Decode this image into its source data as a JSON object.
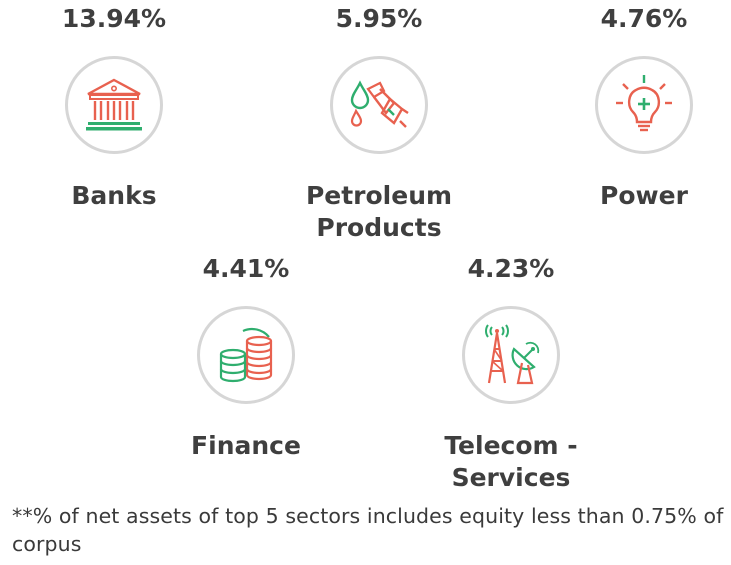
{
  "sectors": [
    {
      "percent": "13.94%",
      "label": "Banks",
      "icon": "bank-icon"
    },
    {
      "percent": "5.95%",
      "label": "Petroleum Products",
      "icon": "fuel-nozzle-icon"
    },
    {
      "percent": "4.76%",
      "label": "Power",
      "icon": "light-bulb-icon"
    },
    {
      "percent": "4.41%",
      "label": "Finance",
      "icon": "coins-icon"
    },
    {
      "percent": "4.23%",
      "label": "Telecom - Services",
      "icon": "telecom-tower-icon"
    }
  ],
  "footnote": "**% of net assets of top 5 sectors includes equity less than 0.75% of corpus",
  "colors": {
    "text": "#3f3f3f",
    "icon_red": "#e8614f",
    "icon_green": "#2fae6e",
    "circle_border": "#d6d6d6"
  }
}
